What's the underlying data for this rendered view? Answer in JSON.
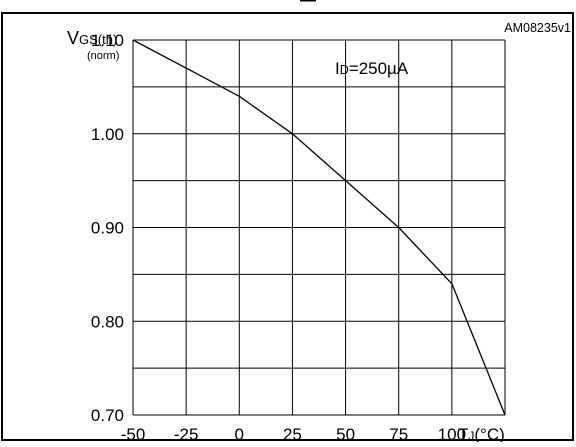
{
  "chart_data": {
    "type": "line",
    "title": "",
    "figure_code": "AM08235v1",
    "ylabel": {
      "main": "V",
      "sub": "GS(th)",
      "unit": "(norm)"
    },
    "xlabel": {
      "main": "T",
      "sub": "J",
      "unit": "(°C)"
    },
    "annotation": {
      "main": "I",
      "sub": "D",
      "rest": "=250µA"
    },
    "xlim": [
      -50,
      125
    ],
    "ylim": [
      0.7,
      1.1
    ],
    "x_gridlines": [
      -50,
      -25,
      0,
      25,
      50,
      75,
      100,
      125
    ],
    "y_gridlines": [
      0.7,
      0.75,
      0.8,
      0.85,
      0.9,
      0.95,
      1.0,
      1.05,
      1.1
    ],
    "x_ticks": [
      {
        "value": -50,
        "label": "-50"
      },
      {
        "value": -25,
        "label": "-25"
      },
      {
        "value": 0,
        "label": "0"
      },
      {
        "value": 25,
        "label": "25"
      },
      {
        "value": 50,
        "label": "50"
      },
      {
        "value": 75,
        "label": "75"
      },
      {
        "value": 100,
        "label": "100"
      }
    ],
    "y_ticks": [
      {
        "value": 1.1,
        "label": "1.10"
      },
      {
        "value": 1.0,
        "label": "1.00"
      },
      {
        "value": 0.9,
        "label": "0.90"
      },
      {
        "value": 0.8,
        "label": "0.80"
      },
      {
        "value": 0.7,
        "label": "0.70"
      }
    ],
    "series": [
      {
        "x": [
          -50,
          -25,
          0,
          25,
          50,
          75,
          100,
          125
        ],
        "y": [
          1.1,
          1.07,
          1.04,
          1.0,
          0.95,
          0.9,
          0.84,
          0.7
        ]
      }
    ]
  }
}
